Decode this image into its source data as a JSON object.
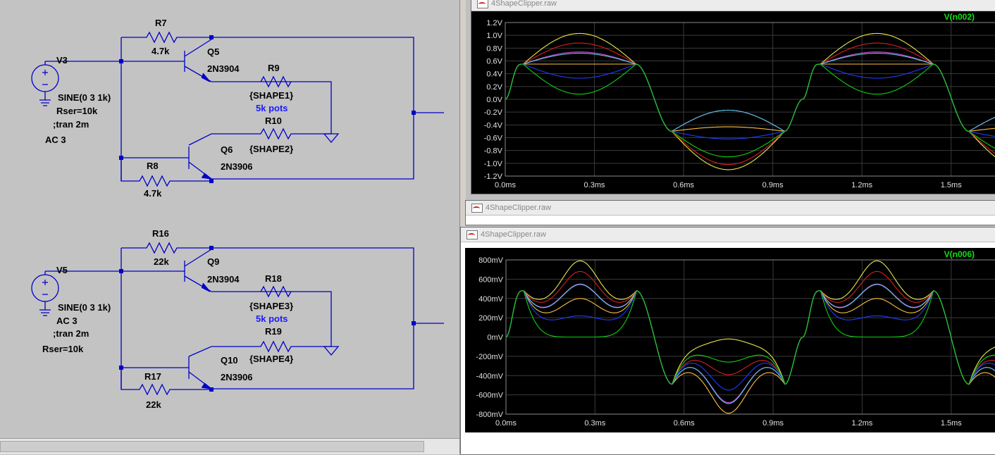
{
  "schematic": {
    "circuit1": {
      "source": {
        "name": "V3",
        "params": "SINE(0 3 1k)",
        "rser": "Rser=10k",
        "tran": ";tran 2m",
        "ac": "AC 3"
      },
      "r7": {
        "name": "R7",
        "value": "4.7k"
      },
      "q5": {
        "name": "Q5",
        "model": "2N3904"
      },
      "r9": {
        "name": "R9",
        "value": "{SHAPE1}"
      },
      "pots_note": "5k pots",
      "r10": {
        "name": "R10",
        "value": "{SHAPE2}"
      },
      "q6": {
        "name": "Q6",
        "model": "2N3906"
      },
      "r8": {
        "name": "R8",
        "value": "4.7k"
      }
    },
    "circuit2": {
      "source": {
        "name": "V5",
        "params": "SINE(0 3 1k)",
        "ac": "AC 3",
        "tran": ";tran 2m",
        "rser": "Rser=10k"
      },
      "r16": {
        "name": "R16",
        "value": "22k"
      },
      "q9": {
        "name": "Q9",
        "model": "2N3904"
      },
      "r18": {
        "name": "R18",
        "value": "{SHAPE3}"
      },
      "pots_note": "5k pots",
      "r19": {
        "name": "R19",
        "value": "{SHAPE4}"
      },
      "q10": {
        "name": "Q10",
        "model": "2N3906"
      },
      "r17": {
        "name": "R17",
        "value": "22k"
      }
    }
  },
  "windows": {
    "top": {
      "title": "4ShapeClipper.raw"
    },
    "middle": {
      "title": "4ShapeClipper.raw"
    },
    "bottom": {
      "title": "4ShapeClipper.raw"
    }
  },
  "colors": {
    "yellow": "#e8e84a",
    "red": "#d62020",
    "magenta": "#e040e0",
    "cyan": "#50c8e0",
    "orange": "#ffc040",
    "blue": "#1c3cff",
    "green": "#10d010",
    "grid": "#3a3a3a",
    "label": "#10e010"
  },
  "chart_data": [
    {
      "type": "line",
      "title": "V(n002)",
      "x_ticks": [
        "0.0ms",
        "0.3ms",
        "0.6ms",
        "0.9ms",
        "1.2ms",
        "1.5ms"
      ],
      "y_ticks": [
        "1.2V",
        "1.0V",
        "0.8V",
        "0.6V",
        "0.4V",
        "0.2V",
        "0.0V",
        "-0.2V",
        "-0.4V",
        "-0.6V",
        "-0.8V",
        "-1.0V",
        "-1.2V"
      ],
      "xlim": [
        0,
        1.65
      ],
      "ylim": [
        -1.2,
        1.2
      ],
      "period_ms": 1.0,
      "knee_pos": 0.55,
      "knee_neg": -0.5,
      "series": [
        {
          "color": "yellow",
          "pos_peak": 1.03,
          "neg_peak": -1.1
        },
        {
          "color": "red",
          "pos_peak": 0.88,
          "neg_peak": -1.02
        },
        {
          "color": "magenta",
          "pos_peak": 0.74,
          "neg_peak": -0.17
        },
        {
          "color": "cyan",
          "pos_peak": 0.72,
          "neg_peak": -0.17
        },
        {
          "color": "orange",
          "pos_peak": 0.55,
          "neg_peak": -0.43
        },
        {
          "color": "blue",
          "pos_peak": 0.33,
          "neg_peak": -0.62
        },
        {
          "color": "green",
          "pos_peak": 0.08,
          "neg_peak": -0.9
        }
      ]
    },
    {
      "type": "line",
      "title": "V(n006)",
      "x_ticks": [
        "0.0ms",
        "0.3ms",
        "0.6ms",
        "0.9ms",
        "1.2ms",
        "1.5ms"
      ],
      "y_ticks": [
        "800mV",
        "600mV",
        "400mV",
        "200mV",
        "0mV",
        "-200mV",
        "-400mV",
        "-600mV",
        "-800mV"
      ],
      "xlim": [
        0,
        1.65
      ],
      "ylim": [
        -800,
        800
      ],
      "period_ms": 1.0,
      "knee_pos": 480,
      "knee_neg": -490,
      "series": [
        {
          "color": "yellow",
          "pos_peak": 790,
          "neg_peak": -20,
          "pos_dip": 330,
          "neg_dip": -110
        },
        {
          "color": "red",
          "pos_peak": 680,
          "neg_peak": -390,
          "pos_dip": 300,
          "neg_dip": -190
        },
        {
          "color": "magenta",
          "pos_peak": 550,
          "neg_peak": -680,
          "pos_dip": 250,
          "neg_dip": -240
        },
        {
          "color": "cyan",
          "pos_peak": 545,
          "neg_peak": -690,
          "pos_dip": 245,
          "neg_dip": -240
        },
        {
          "color": "orange",
          "pos_peak": 400,
          "neg_peak": -790,
          "pos_dip": 200,
          "neg_dip": -300
        },
        {
          "color": "blue",
          "pos_peak": 220,
          "neg_peak": -550,
          "pos_dip": 150,
          "neg_dip": -200
        },
        {
          "color": "green",
          "pos_peak": 0,
          "neg_peak": -260,
          "pos_dip": 0,
          "neg_dip": -150
        }
      ]
    }
  ]
}
